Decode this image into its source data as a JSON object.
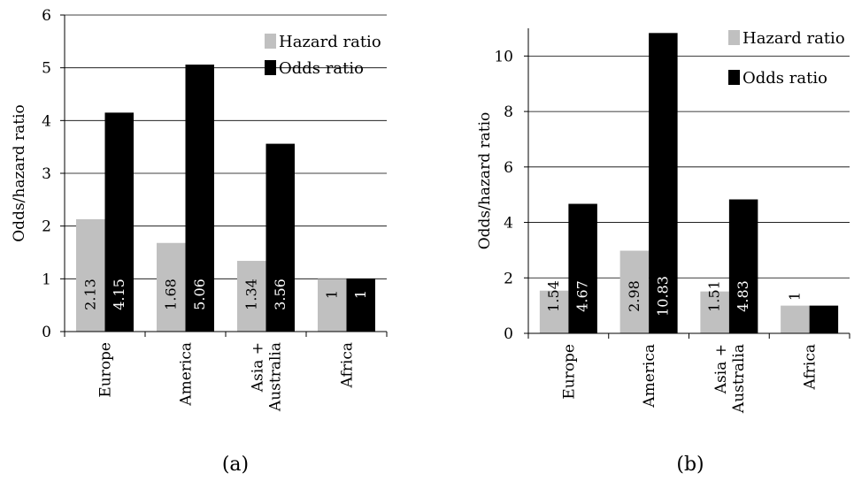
{
  "chart_data": [
    {
      "type": "bar",
      "panel_label": "(a)",
      "ylabel": "Odds/hazard ratio",
      "ylim": [
        0,
        6
      ],
      "yticks": [
        0,
        1,
        2,
        3,
        4,
        5,
        6
      ],
      "categories": [
        [
          "Europe"
        ],
        [
          "America"
        ],
        [
          "Asia +",
          "Australia"
        ],
        [
          "Africa"
        ]
      ],
      "grid": true,
      "legend": "top-right",
      "series": [
        {
          "name": "Hazard ratio",
          "color": "#c0c0c0",
          "label_color": "#000000",
          "values": [
            2.13,
            1.68,
            1.34,
            1
          ],
          "labels": [
            "2.13",
            "1.68",
            "1.34",
            "1"
          ]
        },
        {
          "name": "Odds ratio",
          "color": "#000000",
          "label_color": "#ffffff",
          "values": [
            4.15,
            5.06,
            3.56,
            1
          ],
          "labels": [
            "4.15",
            "5.06",
            "3.56",
            "1"
          ]
        }
      ]
    },
    {
      "type": "bar",
      "panel_label": "(b)",
      "ylabel": "Odds/hazard ratio",
      "ylim": [
        0,
        11
      ],
      "yticks": [
        0,
        2,
        4,
        6,
        8,
        10
      ],
      "categories": [
        [
          "Europe"
        ],
        [
          "America"
        ],
        [
          "Asia +",
          "Australia"
        ],
        [
          "Africa"
        ]
      ],
      "grid": true,
      "legend": "top-right",
      "series": [
        {
          "name": "Hazard ratio",
          "color": "#c0c0c0",
          "label_color": "#000000",
          "values": [
            1.54,
            2.98,
            1.51,
            1
          ],
          "labels": [
            "1.54",
            "2.98",
            "1.51",
            "1"
          ]
        },
        {
          "name": "Odds ratio",
          "color": "#000000",
          "label_color": "#ffffff",
          "values": [
            4.67,
            10.83,
            4.83,
            1
          ],
          "labels": [
            "4.67",
            "10.83",
            "4.83",
            "1"
          ]
        }
      ]
    }
  ]
}
